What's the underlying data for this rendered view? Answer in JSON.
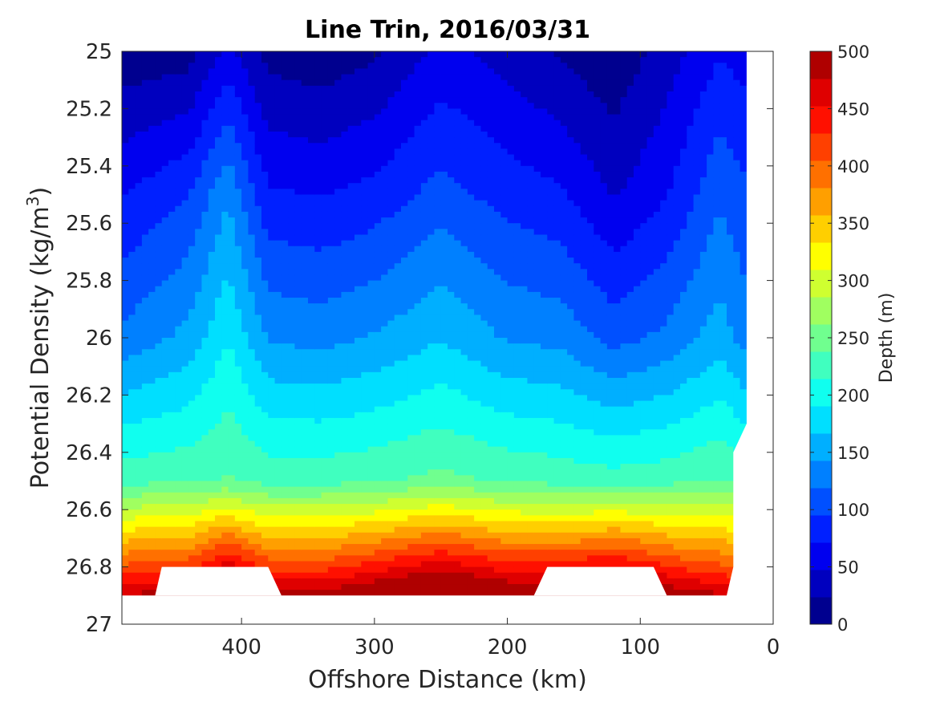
{
  "chart_data": {
    "type": "contour",
    "title": "Line Trin, 2016/03/31",
    "xlabel": "Offshore Distance (km)",
    "ylabel_main": "Potential Density (kg/m",
    "ylabel_sup": "3",
    "ylabel_close": ")",
    "xlim": [
      490,
      0
    ],
    "ylim": [
      25,
      27
    ],
    "x_reversed": true,
    "y_reversed": true,
    "xticks": [
      "400",
      "300",
      "200",
      "100",
      "0"
    ],
    "xtick_values": [
      400,
      300,
      200,
      100,
      0
    ],
    "yticks": [
      "25",
      "25.2",
      "25.4",
      "25.6",
      "25.8",
      "26",
      "26.2",
      "26.4",
      "26.6",
      "26.8",
      "27"
    ],
    "ytick_values": [
      25,
      25.2,
      25.4,
      25.6,
      25.8,
      26,
      26.2,
      26.4,
      26.6,
      26.8,
      27
    ],
    "contour_levels_m": [
      0,
      25,
      50,
      75,
      100,
      125,
      150,
      175,
      200,
      225,
      250,
      275,
      300,
      325,
      350,
      375,
      400,
      425,
      450,
      475,
      500
    ],
    "colorbar": {
      "label": "Depth (m)",
      "ticks": [
        "0",
        "50",
        "100",
        "150",
        "200",
        "250",
        "300",
        "350",
        "400",
        "450",
        "500"
      ],
      "tick_values": [
        0,
        50,
        100,
        150,
        200,
        250,
        300,
        350,
        400,
        450,
        500
      ],
      "range": [
        0,
        500
      ],
      "colormap": "jet",
      "colors": [
        "#00008f",
        "#0000bf",
        "#0000ef",
        "#0020ff",
        "#0050ff",
        "#0080ff",
        "#00afff",
        "#00dfff",
        "#10ffef",
        "#40ffbf",
        "#70ff8f",
        "#a0ff60",
        "#cfff30",
        "#ffff00",
        "#ffcf00",
        "#ff9f00",
        "#ff7000",
        "#ff4000",
        "#ff1000",
        "#df0000",
        "#af0000"
      ]
    },
    "isopycnal_depths": {
      "x_km": [
        490,
        440,
        410,
        380,
        340,
        300,
        250,
        200,
        160,
        120,
        80,
        40,
        20
      ],
      "z25_m": [
        8,
        12,
        55,
        15,
        8,
        20,
        55,
        38,
        20,
        5,
        35,
        70,
        60
      ],
      "sigma_25_5_m": [
        70,
        95,
        140,
        75,
        70,
        80,
        105,
        85,
        75,
        45,
        70,
        115,
        100
      ],
      "sigma_26_m": [
        125,
        150,
        190,
        140,
        135,
        145,
        165,
        140,
        135,
        110,
        125,
        155,
        130
      ],
      "sigma_26_5_m": [
        230,
        235,
        240,
        230,
        230,
        235,
        245,
        235,
        230,
        225,
        230,
        240,
        230
      ],
      "sigma_26_8_m": [
        410,
        420,
        470,
        420,
        420,
        440,
        470,
        440,
        440,
        460,
        430,
        410,
        400
      ]
    },
    "grid": false,
    "colorbar_position": "right"
  }
}
